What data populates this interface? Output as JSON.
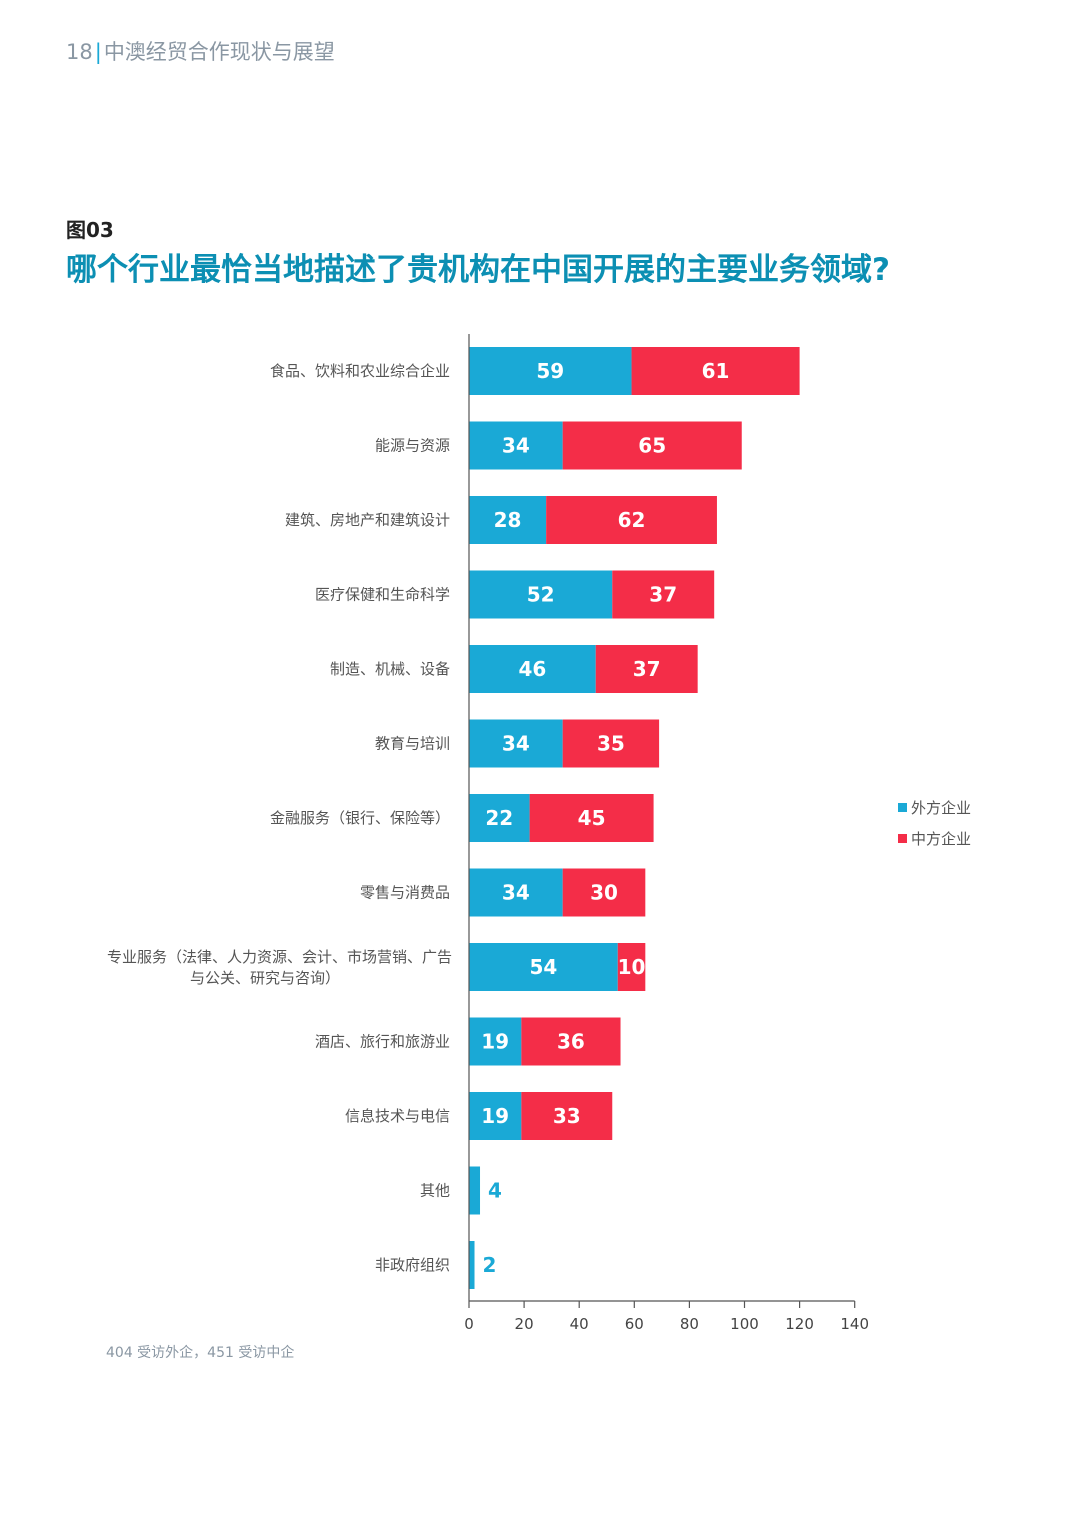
{
  "header": {
    "page_number": "18",
    "separator": "|",
    "doc_title": "中澳经贸合作现状与展望"
  },
  "figure": {
    "label": "图03",
    "title": "哪个行业最恰当地描述了贵机构在中国开展的主要业务领域?"
  },
  "colors": {
    "foreign": "#1aa9d6",
    "chinese": "#f42d48",
    "axis": "#555555"
  },
  "chart_data": {
    "type": "bar",
    "orientation": "horizontal",
    "stacked": true,
    "categories": [
      [
        "食品、饮料和农业综合企业"
      ],
      [
        "能源与资源"
      ],
      [
        "建筑、房地产和建筑设计"
      ],
      [
        "医疗保健和生命科学"
      ],
      [
        "制造、机械、设备"
      ],
      [
        "教育与培训"
      ],
      [
        "金融服务（银行、保险等）"
      ],
      [
        "零售与消费品"
      ],
      [
        "专业服务（法律、人力资源、会计、市场营销、广告",
        "与公关、研究与咨询）"
      ],
      [
        "酒店、旅行和旅游业"
      ],
      [
        "信息技术与电信"
      ],
      [
        "其他"
      ],
      [
        "非政府组织"
      ]
    ],
    "series": [
      {
        "name": "外方企业",
        "values": [
          59,
          34,
          28,
          52,
          46,
          34,
          22,
          34,
          54,
          19,
          19,
          4,
          2
        ]
      },
      {
        "name": "中方企业",
        "values": [
          61,
          65,
          62,
          37,
          37,
          35,
          45,
          30,
          10,
          36,
          33,
          0,
          0
        ]
      }
    ],
    "xlim": [
      0,
      140
    ],
    "xticks": [
      "0",
      "20",
      "40",
      "60",
      "80",
      "100",
      "120",
      "140"
    ],
    "legend": "right"
  },
  "note": "404 受访外企，451 受访中企"
}
